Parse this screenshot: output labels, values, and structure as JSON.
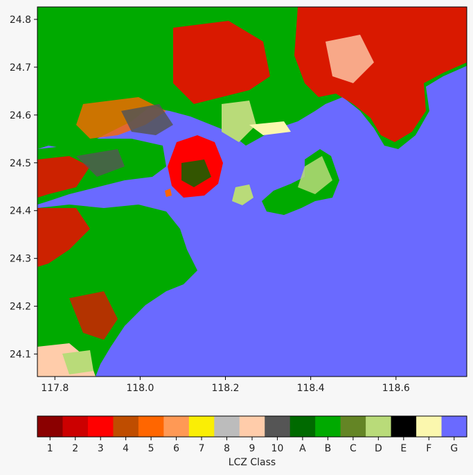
{
  "map": {
    "lon_range": [
      117.759,
      118.766
    ],
    "lat_range": [
      24.053,
      24.826
    ],
    "x_ticks": [
      117.8,
      118.0,
      118.2,
      118.4,
      118.6
    ],
    "x_tick_labels": [
      "117.8",
      "118.0",
      "118.2",
      "118.4",
      "118.6"
    ],
    "y_ticks": [
      24.1,
      24.2,
      24.3,
      24.4,
      24.5,
      24.6,
      24.7,
      24.8
    ],
    "y_tick_labels": [
      "24.1",
      "24.2",
      "24.3",
      "24.4",
      "24.5",
      "24.6",
      "24.7",
      "24.8"
    ]
  },
  "colorbar": {
    "label": "LCZ Class",
    "classes": [
      {
        "label": "1",
        "color": "#8b0000"
      },
      {
        "label": "2",
        "color": "#cc0000"
      },
      {
        "label": "3",
        "color": "#ff0000"
      },
      {
        "label": "4",
        "color": "#bf4d00"
      },
      {
        "label": "5",
        "color": "#ff6600"
      },
      {
        "label": "6",
        "color": "#ff9955"
      },
      {
        "label": "7",
        "color": "#faee05"
      },
      {
        "label": "8",
        "color": "#bcbcbc"
      },
      {
        "label": "9",
        "color": "#ffccaa"
      },
      {
        "label": "10",
        "color": "#555555"
      },
      {
        "label": "A",
        "color": "#006a00"
      },
      {
        "label": "B",
        "color": "#00aa00"
      },
      {
        "label": "C",
        "color": "#648525"
      },
      {
        "label": "D",
        "color": "#b9db79"
      },
      {
        "label": "E",
        "color": "#000000"
      },
      {
        "label": "F",
        "color": "#fbf7ae"
      },
      {
        "label": "G",
        "color": "#6a6aff"
      }
    ]
  }
}
